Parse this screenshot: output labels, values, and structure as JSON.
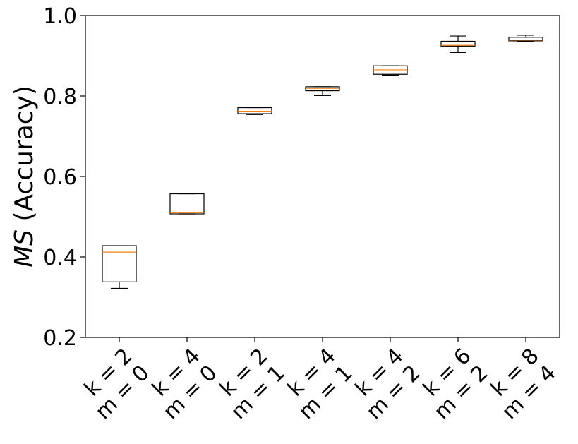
{
  "chart_data": {
    "type": "box",
    "ylabel_italic": "MS",
    "ylabel_rest": " (Accuracy)",
    "xlabel": "",
    "ylim": [
      0.2,
      1.0
    ],
    "yticks": [
      "0.2",
      "0.4",
      "0.6",
      "0.8",
      "1.0"
    ],
    "ytick_values": [
      0.2,
      0.4,
      0.6,
      0.8,
      1.0
    ],
    "grid": false,
    "categories": [
      {
        "line1": "k = 2",
        "line2": "m = 0"
      },
      {
        "line1": "k = 4",
        "line2": "m = 0"
      },
      {
        "line1": "k = 2",
        "line2": "m = 1"
      },
      {
        "line1": "k = 4",
        "line2": "m = 1"
      },
      {
        "line1": "k = 4",
        "line2": "m = 2"
      },
      {
        "line1": "k = 6",
        "line2": "m = 2"
      },
      {
        "line1": "k = 8",
        "line2": "m = 4"
      }
    ],
    "boxes": [
      {
        "whislo": 0.322,
        "q1": 0.338,
        "med": 0.412,
        "q3": 0.428,
        "whishi": 0.428
      },
      {
        "whislo": 0.507,
        "q1": 0.507,
        "med": 0.51,
        "q3": 0.557,
        "whishi": 0.557
      },
      {
        "whislo": 0.754,
        "q1": 0.756,
        "med": 0.762,
        "q3": 0.771,
        "whishi": 0.771
      },
      {
        "whislo": 0.801,
        "q1": 0.813,
        "med": 0.819,
        "q3": 0.823,
        "whishi": 0.823
      },
      {
        "whislo": 0.852,
        "q1": 0.854,
        "med": 0.865,
        "q3": 0.875,
        "whishi": 0.875
      },
      {
        "whislo": 0.908,
        "q1": 0.924,
        "med": 0.926,
        "q3": 0.936,
        "whishi": 0.949
      },
      {
        "whislo": 0.935,
        "q1": 0.937,
        "med": 0.939,
        "q3": 0.946,
        "whishi": 0.951
      }
    ],
    "colors": {
      "box": "#000000",
      "median": "#ff7f0e",
      "axes": "#000000"
    }
  }
}
